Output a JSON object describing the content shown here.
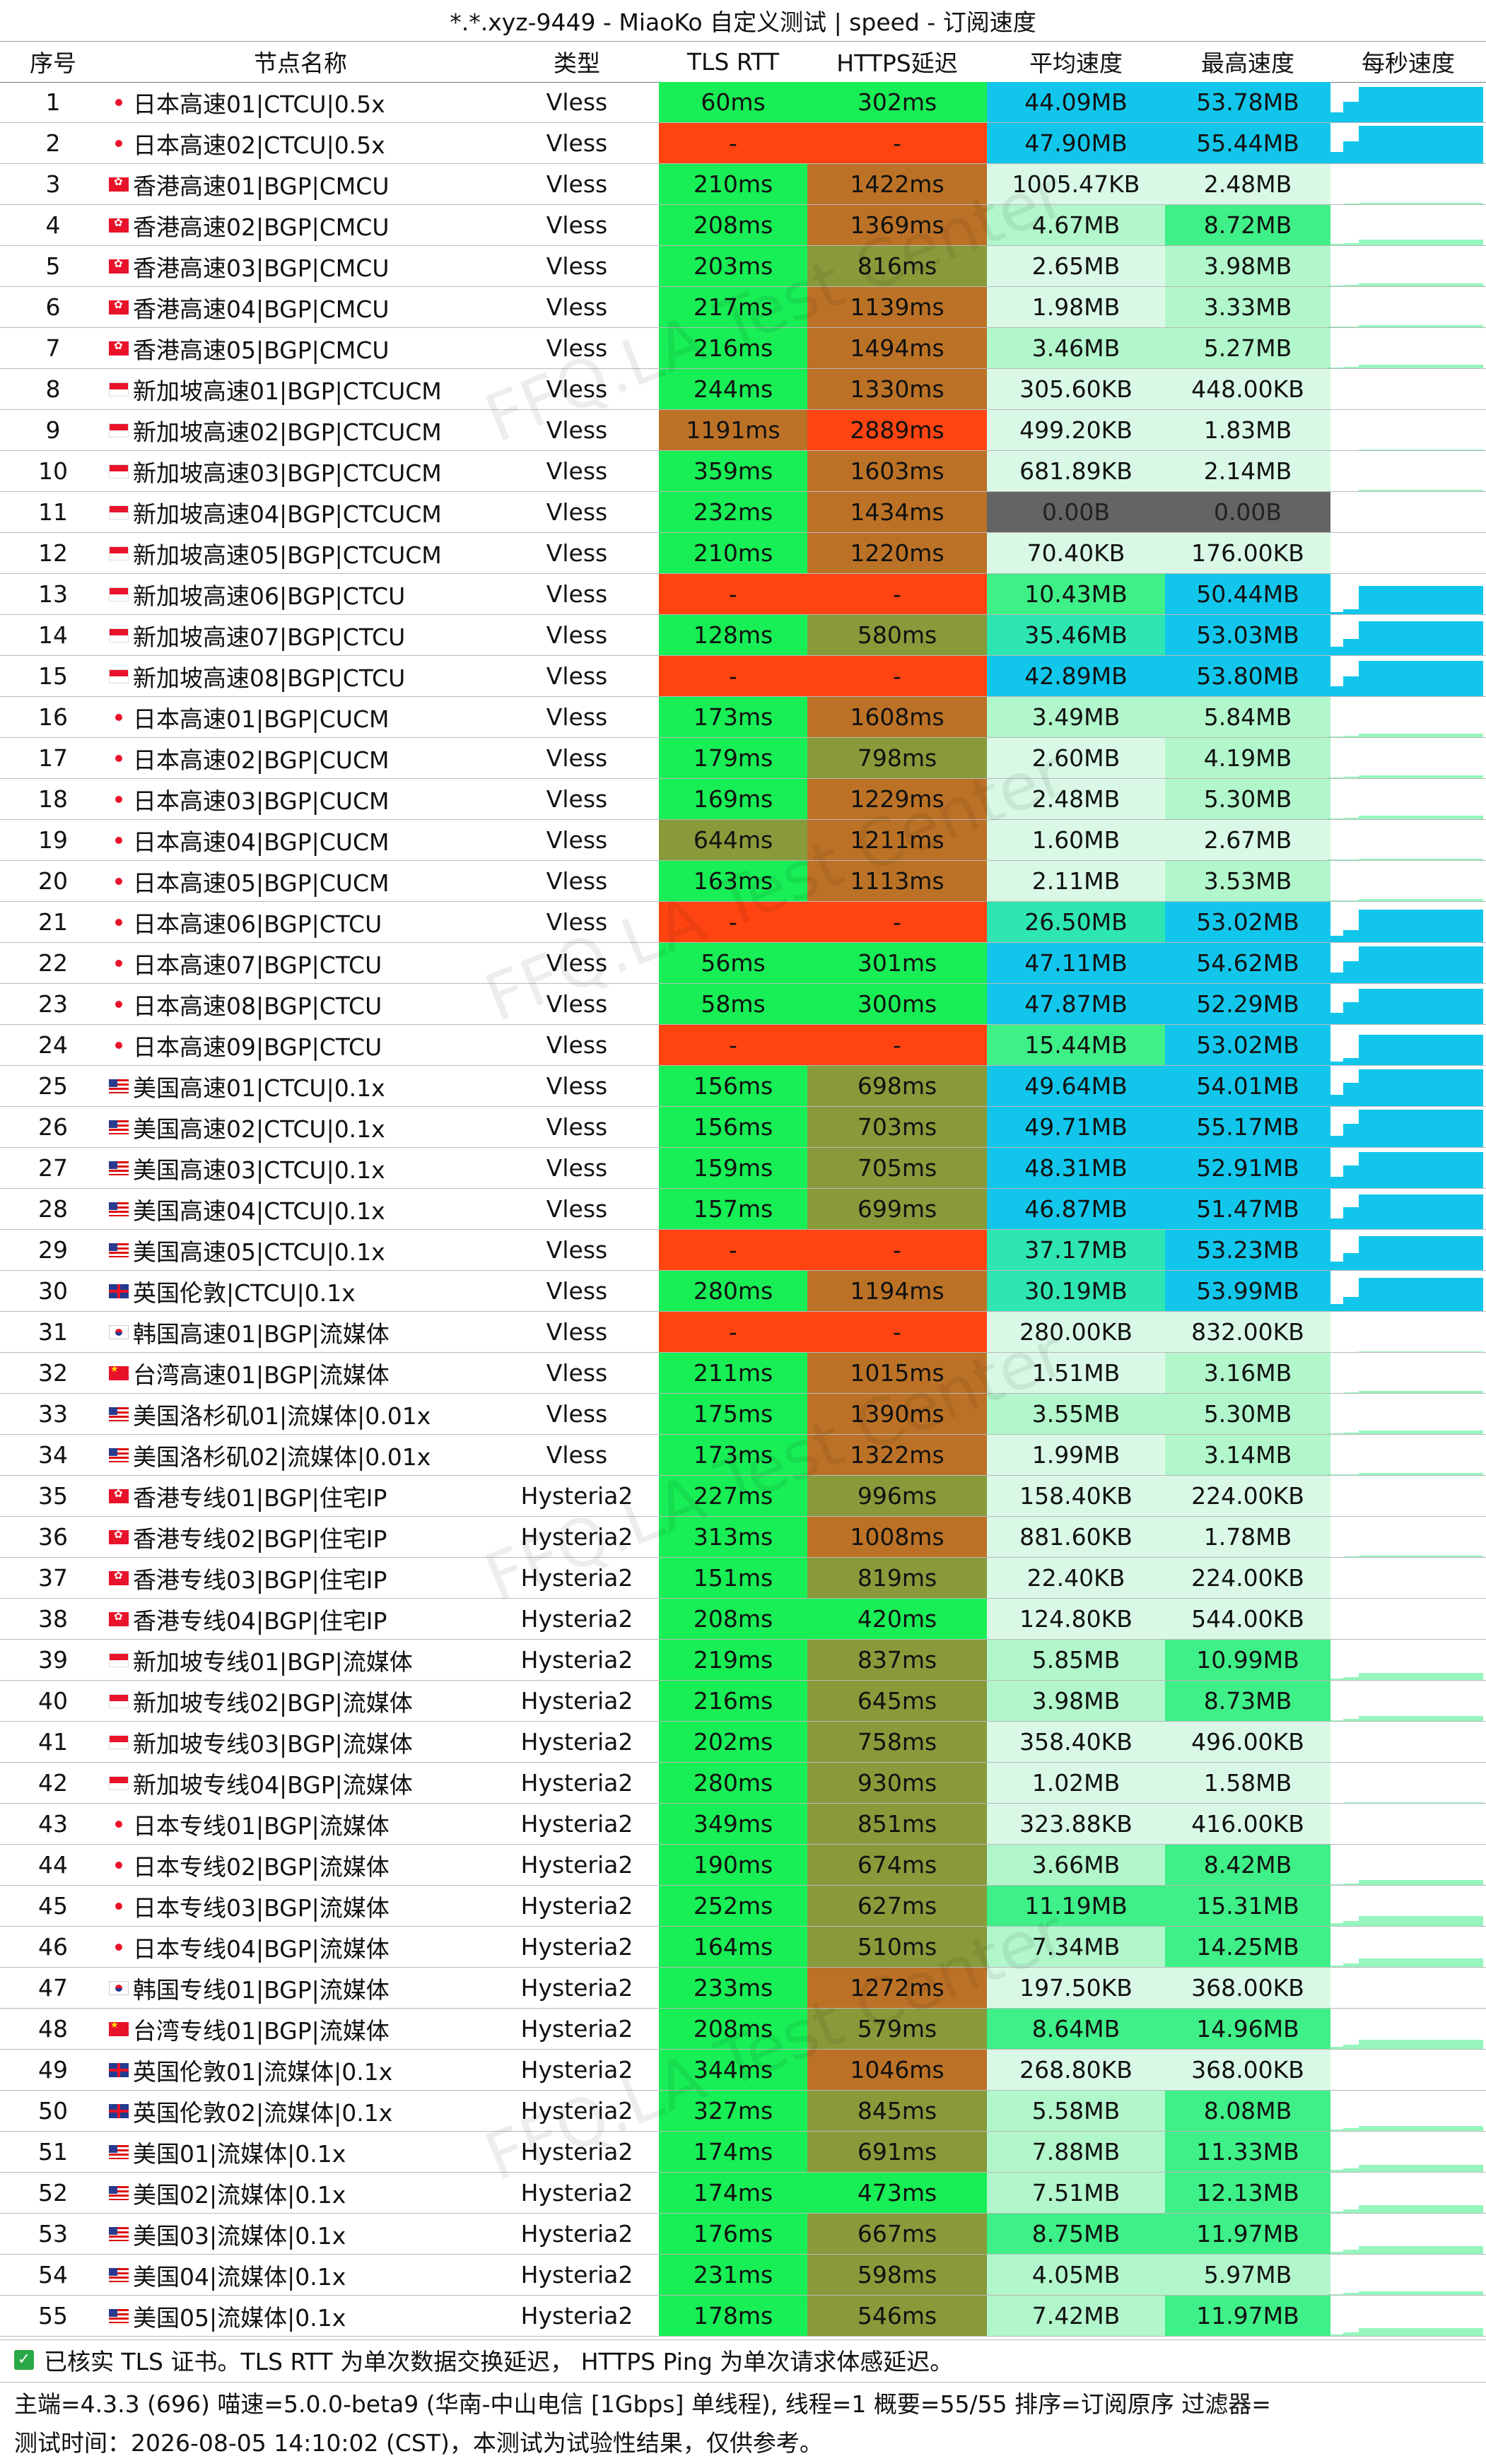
{
  "title": "*.*.xyz-9449 - MiaoKo 自定义测试 | speed - 订阅速度",
  "headers": {
    "idx": "序号",
    "name": "节点名称",
    "type": "类型",
    "tls": "TLS RTT",
    "https": "HTTPS延迟",
    "avg": "平均速度",
    "max": "最高速度",
    "persec": "每秒速度"
  },
  "watermark": "FFQ.LA Test Center",
  "colors": {
    "green": "#18ee55",
    "red": "#ff4412",
    "olive": "#889a3a",
    "orange": "#bc7226",
    "lowspeed": "#d9f9e6",
    "midspeed": "#3fef88",
    "highspeed": "#12c6eb",
    "zero": "#646464"
  },
  "rows": [
    {
      "idx": "1",
      "flag": "jp",
      "name": "日本高速01|CTCU|0.5x",
      "type": "Vless",
      "tls": "60ms",
      "https": "302ms",
      "avg": "44.09MB",
      "max": "53.78MB",
      "avgv": 44.09,
      "maxv": 53.78
    },
    {
      "idx": "2",
      "flag": "jp",
      "name": "日本高速02|CTCU|0.5x",
      "type": "Vless",
      "tls": "-",
      "https": "-",
      "avg": "47.90MB",
      "max": "55.44MB",
      "avgv": 47.9,
      "maxv": 55.44
    },
    {
      "idx": "3",
      "flag": "hk",
      "name": "香港高速01|BGP|CMCU",
      "type": "Vless",
      "tls": "210ms",
      "https": "1422ms",
      "avg": "1005.47KB",
      "max": "2.48MB",
      "avgv": 0.98,
      "maxv": 2.48
    },
    {
      "idx": "4",
      "flag": "hk",
      "name": "香港高速02|BGP|CMCU",
      "type": "Vless",
      "tls": "208ms",
      "https": "1369ms",
      "avg": "4.67MB",
      "max": "8.72MB",
      "avgv": 4.67,
      "maxv": 8.72
    },
    {
      "idx": "5",
      "flag": "hk",
      "name": "香港高速03|BGP|CMCU",
      "type": "Vless",
      "tls": "203ms",
      "https": "816ms",
      "avg": "2.65MB",
      "max": "3.98MB",
      "avgv": 2.65,
      "maxv": 3.98
    },
    {
      "idx": "6",
      "flag": "hk",
      "name": "香港高速04|BGP|CMCU",
      "type": "Vless",
      "tls": "217ms",
      "https": "1139ms",
      "avg": "1.98MB",
      "max": "3.33MB",
      "avgv": 1.98,
      "maxv": 3.33
    },
    {
      "idx": "7",
      "flag": "hk",
      "name": "香港高速05|BGP|CMCU",
      "type": "Vless",
      "tls": "216ms",
      "https": "1494ms",
      "avg": "3.46MB",
      "max": "5.27MB",
      "avgv": 3.46,
      "maxv": 5.27
    },
    {
      "idx": "8",
      "flag": "sg",
      "name": "新加坡高速01|BGP|CTCUCM",
      "type": "Vless",
      "tls": "244ms",
      "https": "1330ms",
      "avg": "305.60KB",
      "max": "448.00KB",
      "avgv": 0.3,
      "maxv": 0.44
    },
    {
      "idx": "9",
      "flag": "sg",
      "name": "新加坡高速02|BGP|CTCUCM",
      "type": "Vless",
      "tls": "1191ms",
      "https": "2889ms",
      "avg": "499.20KB",
      "max": "1.83MB",
      "avgv": 0.49,
      "maxv": 1.83
    },
    {
      "idx": "10",
      "flag": "sg",
      "name": "新加坡高速03|BGP|CTCUCM",
      "type": "Vless",
      "tls": "359ms",
      "https": "1603ms",
      "avg": "681.89KB",
      "max": "2.14MB",
      "avgv": 0.67,
      "maxv": 2.14
    },
    {
      "idx": "11",
      "flag": "sg",
      "name": "新加坡高速04|BGP|CTCUCM",
      "type": "Vless",
      "tls": "232ms",
      "https": "1434ms",
      "avg": "0.00B",
      "max": "0.00B",
      "avgv": 0,
      "maxv": 0
    },
    {
      "idx": "12",
      "flag": "sg",
      "name": "新加坡高速05|BGP|CTCUCM",
      "type": "Vless",
      "tls": "210ms",
      "https": "1220ms",
      "avg": "70.40KB",
      "max": "176.00KB",
      "avgv": 0.07,
      "maxv": 0.17
    },
    {
      "idx": "13",
      "flag": "sg",
      "name": "新加坡高速06|BGP|CTCU",
      "type": "Vless",
      "tls": "-",
      "https": "-",
      "avg": "10.43MB",
      "max": "50.44MB",
      "avgv": 10.43,
      "maxv": 50.44
    },
    {
      "idx": "14",
      "flag": "sg",
      "name": "新加坡高速07|BGP|CTCU",
      "type": "Vless",
      "tls": "128ms",
      "https": "580ms",
      "avg": "35.46MB",
      "max": "53.03MB",
      "avgv": 35.46,
      "maxv": 53.03
    },
    {
      "idx": "15",
      "flag": "sg",
      "name": "新加坡高速08|BGP|CTCU",
      "type": "Vless",
      "tls": "-",
      "https": "-",
      "avg": "42.89MB",
      "max": "53.80MB",
      "avgv": 42.89,
      "maxv": 53.8
    },
    {
      "idx": "16",
      "flag": "jp",
      "name": "日本高速01|BGP|CUCM",
      "type": "Vless",
      "tls": "173ms",
      "https": "1608ms",
      "avg": "3.49MB",
      "max": "5.84MB",
      "avgv": 3.49,
      "maxv": 5.84
    },
    {
      "idx": "17",
      "flag": "jp",
      "name": "日本高速02|BGP|CUCM",
      "type": "Vless",
      "tls": "179ms",
      "https": "798ms",
      "avg": "2.60MB",
      "max": "4.19MB",
      "avgv": 2.6,
      "maxv": 4.19
    },
    {
      "idx": "18",
      "flag": "jp",
      "name": "日本高速03|BGP|CUCM",
      "type": "Vless",
      "tls": "169ms",
      "https": "1229ms",
      "avg": "2.48MB",
      "max": "5.30MB",
      "avgv": 2.48,
      "maxv": 5.3
    },
    {
      "idx": "19",
      "flag": "jp",
      "name": "日本高速04|BGP|CUCM",
      "type": "Vless",
      "tls": "644ms",
      "https": "1211ms",
      "avg": "1.60MB",
      "max": "2.67MB",
      "avgv": 1.6,
      "maxv": 2.67
    },
    {
      "idx": "20",
      "flag": "jp",
      "name": "日本高速05|BGP|CUCM",
      "type": "Vless",
      "tls": "163ms",
      "https": "1113ms",
      "avg": "2.11MB",
      "max": "3.53MB",
      "avgv": 2.11,
      "maxv": 3.53
    },
    {
      "idx": "21",
      "flag": "jp",
      "name": "日本高速06|BGP|CTCU",
      "type": "Vless",
      "tls": "-",
      "https": "-",
      "avg": "26.50MB",
      "max": "53.02MB",
      "avgv": 26.5,
      "maxv": 53.02
    },
    {
      "idx": "22",
      "flag": "jp",
      "name": "日本高速07|BGP|CTCU",
      "type": "Vless",
      "tls": "56ms",
      "https": "301ms",
      "avg": "47.11MB",
      "max": "54.62MB",
      "avgv": 47.11,
      "maxv": 54.62
    },
    {
      "idx": "23",
      "flag": "jp",
      "name": "日本高速08|BGP|CTCU",
      "type": "Vless",
      "tls": "58ms",
      "https": "300ms",
      "avg": "47.87MB",
      "max": "52.29MB",
      "avgv": 47.87,
      "maxv": 52.29
    },
    {
      "idx": "24",
      "flag": "jp",
      "name": "日本高速09|BGP|CTCU",
      "type": "Vless",
      "tls": "-",
      "https": "-",
      "avg": "15.44MB",
      "max": "53.02MB",
      "avgv": 15.44,
      "maxv": 53.02
    },
    {
      "idx": "25",
      "flag": "us",
      "name": "美国高速01|CTCU|0.1x",
      "type": "Vless",
      "tls": "156ms",
      "https": "698ms",
      "avg": "49.64MB",
      "max": "54.01MB",
      "avgv": 49.64,
      "maxv": 54.01
    },
    {
      "idx": "26",
      "flag": "us",
      "name": "美国高速02|CTCU|0.1x",
      "type": "Vless",
      "tls": "156ms",
      "https": "703ms",
      "avg": "49.71MB",
      "max": "55.17MB",
      "avgv": 49.71,
      "maxv": 55.17
    },
    {
      "idx": "27",
      "flag": "us",
      "name": "美国高速03|CTCU|0.1x",
      "type": "Vless",
      "tls": "159ms",
      "https": "705ms",
      "avg": "48.31MB",
      "max": "52.91MB",
      "avgv": 48.31,
      "maxv": 52.91
    },
    {
      "idx": "28",
      "flag": "us",
      "name": "美国高速04|CTCU|0.1x",
      "type": "Vless",
      "tls": "157ms",
      "https": "699ms",
      "avg": "46.87MB",
      "max": "51.47MB",
      "avgv": 46.87,
      "maxv": 51.47
    },
    {
      "idx": "29",
      "flag": "us",
      "name": "美国高速05|CTCU|0.1x",
      "type": "Vless",
      "tls": "-",
      "https": "-",
      "avg": "37.17MB",
      "max": "53.23MB",
      "avgv": 37.17,
      "maxv": 53.23
    },
    {
      "idx": "30",
      "flag": "gb",
      "name": "英国伦敦|CTCU|0.1x",
      "type": "Vless",
      "tls": "280ms",
      "https": "1194ms",
      "avg": "30.19MB",
      "max": "53.99MB",
      "avgv": 30.19,
      "maxv": 53.99
    },
    {
      "idx": "31",
      "flag": "kr",
      "name": "韩国高速01|BGP|流媒体",
      "type": "Vless",
      "tls": "-",
      "https": "-",
      "avg": "280.00KB",
      "max": "832.00KB",
      "avgv": 0.27,
      "maxv": 0.81
    },
    {
      "idx": "32",
      "flag": "cn",
      "name": "台湾高速01|BGP|流媒体",
      "type": "Vless",
      "tls": "211ms",
      "https": "1015ms",
      "avg": "1.51MB",
      "max": "3.16MB",
      "avgv": 1.51,
      "maxv": 3.16
    },
    {
      "idx": "33",
      "flag": "us",
      "name": "美国洛杉矶01|流媒体|0.01x",
      "type": "Vless",
      "tls": "175ms",
      "https": "1390ms",
      "avg": "3.55MB",
      "max": "5.30MB",
      "avgv": 3.55,
      "maxv": 5.3
    },
    {
      "idx": "34",
      "flag": "us",
      "name": "美国洛杉矶02|流媒体|0.01x",
      "type": "Vless",
      "tls": "173ms",
      "https": "1322ms",
      "avg": "1.99MB",
      "max": "3.14MB",
      "avgv": 1.99,
      "maxv": 3.14
    },
    {
      "idx": "35",
      "flag": "hk",
      "name": "香港专线01|BGP|住宅IP",
      "type": "Hysteria2",
      "tls": "227ms",
      "https": "996ms",
      "avg": "158.40KB",
      "max": "224.00KB",
      "avgv": 0.15,
      "maxv": 0.22
    },
    {
      "idx": "36",
      "flag": "hk",
      "name": "香港专线02|BGP|住宅IP",
      "type": "Hysteria2",
      "tls": "313ms",
      "https": "1008ms",
      "avg": "881.60KB",
      "max": "1.78MB",
      "avgv": 0.86,
      "maxv": 1.78
    },
    {
      "idx": "37",
      "flag": "hk",
      "name": "香港专线03|BGP|住宅IP",
      "type": "Hysteria2",
      "tls": "151ms",
      "https": "819ms",
      "avg": "22.40KB",
      "max": "224.00KB",
      "avgv": 0.02,
      "maxv": 0.22
    },
    {
      "idx": "38",
      "flag": "hk",
      "name": "香港专线04|BGP|住宅IP",
      "type": "Hysteria2",
      "tls": "208ms",
      "https": "420ms",
      "avg": "124.80KB",
      "max": "544.00KB",
      "avgv": 0.12,
      "maxv": 0.53
    },
    {
      "idx": "39",
      "flag": "sg",
      "name": "新加坡专线01|BGP|流媒体",
      "type": "Hysteria2",
      "tls": "219ms",
      "https": "837ms",
      "avg": "5.85MB",
      "max": "10.99MB",
      "avgv": 5.85,
      "maxv": 10.99
    },
    {
      "idx": "40",
      "flag": "sg",
      "name": "新加坡专线02|BGP|流媒体",
      "type": "Hysteria2",
      "tls": "216ms",
      "https": "645ms",
      "avg": "3.98MB",
      "max": "8.73MB",
      "avgv": 3.98,
      "maxv": 8.73
    },
    {
      "idx": "41",
      "flag": "sg",
      "name": "新加坡专线03|BGP|流媒体",
      "type": "Hysteria2",
      "tls": "202ms",
      "https": "758ms",
      "avg": "358.40KB",
      "max": "496.00KB",
      "avgv": 0.35,
      "maxv": 0.48
    },
    {
      "idx": "42",
      "flag": "sg",
      "name": "新加坡专线04|BGP|流媒体",
      "type": "Hysteria2",
      "tls": "280ms",
      "https": "930ms",
      "avg": "1.02MB",
      "max": "1.58MB",
      "avgv": 1.02,
      "maxv": 1.58
    },
    {
      "idx": "43",
      "flag": "jp",
      "name": "日本专线01|BGP|流媒体",
      "type": "Hysteria2",
      "tls": "349ms",
      "https": "851ms",
      "avg": "323.88KB",
      "max": "416.00KB",
      "avgv": 0.32,
      "maxv": 0.41
    },
    {
      "idx": "44",
      "flag": "jp",
      "name": "日本专线02|BGP|流媒体",
      "type": "Hysteria2",
      "tls": "190ms",
      "https": "674ms",
      "avg": "3.66MB",
      "max": "8.42MB",
      "avgv": 3.66,
      "maxv": 8.42
    },
    {
      "idx": "45",
      "flag": "jp",
      "name": "日本专线03|BGP|流媒体",
      "type": "Hysteria2",
      "tls": "252ms",
      "https": "627ms",
      "avg": "11.19MB",
      "max": "15.31MB",
      "avgv": 11.19,
      "maxv": 15.31
    },
    {
      "idx": "46",
      "flag": "jp",
      "name": "日本专线04|BGP|流媒体",
      "type": "Hysteria2",
      "tls": "164ms",
      "https": "510ms",
      "avg": "7.34MB",
      "max": "14.25MB",
      "avgv": 7.34,
      "maxv": 14.25
    },
    {
      "idx": "47",
      "flag": "kr",
      "name": "韩国专线01|BGP|流媒体",
      "type": "Hysteria2",
      "tls": "233ms",
      "https": "1272ms",
      "avg": "197.50KB",
      "max": "368.00KB",
      "avgv": 0.19,
      "maxv": 0.36
    },
    {
      "idx": "48",
      "flag": "cn",
      "name": "台湾专线01|BGP|流媒体",
      "type": "Hysteria2",
      "tls": "208ms",
      "https": "579ms",
      "avg": "8.64MB",
      "max": "14.96MB",
      "avgv": 8.64,
      "maxv": 14.96
    },
    {
      "idx": "49",
      "flag": "gb",
      "name": "英国伦敦01|流媒体|0.1x",
      "type": "Hysteria2",
      "tls": "344ms",
      "https": "1046ms",
      "avg": "268.80KB",
      "max": "368.00KB",
      "avgv": 0.26,
      "maxv": 0.36
    },
    {
      "idx": "50",
      "flag": "gb",
      "name": "英国伦敦02|流媒体|0.1x",
      "type": "Hysteria2",
      "tls": "327ms",
      "https": "845ms",
      "avg": "5.58MB",
      "max": "8.08MB",
      "avgv": 5.58,
      "maxv": 8.08
    },
    {
      "idx": "51",
      "flag": "us",
      "name": "美国01|流媒体|0.1x",
      "type": "Hysteria2",
      "tls": "174ms",
      "https": "691ms",
      "avg": "7.88MB",
      "max": "11.33MB",
      "avgv": 7.88,
      "maxv": 11.33
    },
    {
      "idx": "52",
      "flag": "us",
      "name": "美国02|流媒体|0.1x",
      "type": "Hysteria2",
      "tls": "174ms",
      "https": "473ms",
      "avg": "7.51MB",
      "max": "12.13MB",
      "avgv": 7.51,
      "maxv": 12.13
    },
    {
      "idx": "53",
      "flag": "us",
      "name": "美国03|流媒体|0.1x",
      "type": "Hysteria2",
      "tls": "176ms",
      "https": "667ms",
      "avg": "8.75MB",
      "max": "11.97MB",
      "avgv": 8.75,
      "maxv": 11.97
    },
    {
      "idx": "54",
      "flag": "us",
      "name": "美国04|流媒体|0.1x",
      "type": "Hysteria2",
      "tls": "231ms",
      "https": "598ms",
      "avg": "4.05MB",
      "max": "5.97MB",
      "avgv": 4.05,
      "maxv": 5.97
    },
    {
      "idx": "55",
      "flag": "us",
      "name": "美国05|流媒体|0.1x",
      "type": "Hysteria2",
      "tls": "178ms",
      "https": "546ms",
      "avg": "7.42MB",
      "max": "11.97MB",
      "avgv": 7.42,
      "maxv": 11.97
    }
  ],
  "footer": {
    "line1": "已核实 TLS 证书。TLS RTT 为单次数据交换延迟， HTTPS Ping 为单次请求体感延迟。",
    "line2": "主端=4.3.3 (696) 喵速=5.0.0-beta9 (华南-中山电信 [1Gbps] 单线程), 线程=1 概要=55/55 排序=订阅原序 过滤器=",
    "line3": "测试时间：2026-08-05 14:10:02 (CST)，本测试为试验性结果，仅供参考。"
  }
}
